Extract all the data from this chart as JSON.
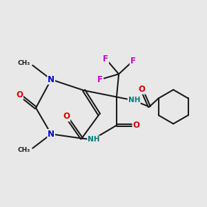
{
  "bg_color": "#e8e8e8",
  "bond_color": "#1a1a1a",
  "bond_lw": 1.5,
  "dbl_off": 0.055,
  "colors": {
    "O": "#dd0000",
    "N": "#0000cc",
    "F": "#cc00cc",
    "NH": "#007777",
    "C": "#1a1a1a"
  },
  "fs": 8.5,
  "fss": 7.5,
  "fst": 6.5
}
